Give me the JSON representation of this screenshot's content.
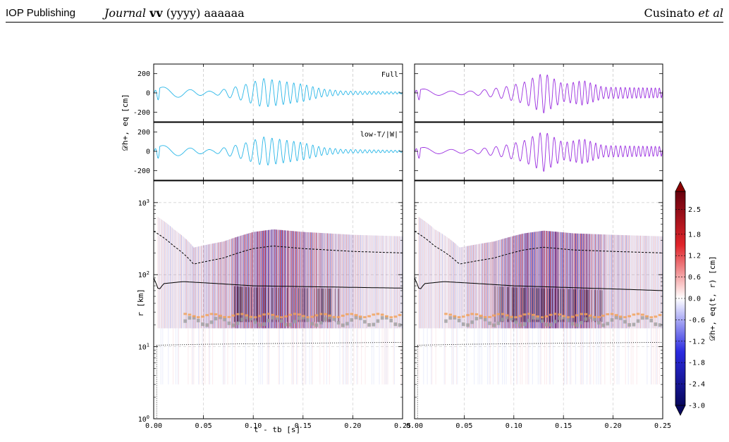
{
  "header": {
    "publisher": "IOP Publishing",
    "journal_italic": "Journal",
    "journal_vol": "vv",
    "journal_year": "(yyyy)",
    "journal_page": "aaaaaa",
    "author_name": "Cusinato",
    "author_etal": "et al"
  },
  "figure": {
    "panel_labels": [
      "Full",
      "low-T/|W|"
    ],
    "ylabel_top": "𝒟h+, eq [cm]",
    "ylabel_bottom": "r [km]",
    "xlabel": "t - tb [s]",
    "cbar_label": "𝒟h+, eq(t, r) [cm]",
    "colors": {
      "left_wave": "#2ab7e8",
      "right_wave": "#9b30e0",
      "cbar_pos": "#8b0000",
      "cbar_neg": "#08085e"
    }
  },
  "chart_data": [
    {
      "type": "line",
      "panel": "top-left",
      "label": "Full",
      "xlim": [
        0.0,
        0.25
      ],
      "ylim": [
        -300,
        300
      ],
      "yticks": [
        200,
        0,
        -200
      ],
      "series": [
        {
          "x": [
            0.0,
            0.03,
            0.06,
            0.09,
            0.11,
            0.13,
            0.15,
            0.17,
            0.19,
            0.22,
            0.25
          ],
          "values": [
            70,
            40,
            15,
            80,
            150,
            120,
            90,
            40,
            20,
            15,
            10
          ]
        }
      ]
    },
    {
      "type": "line",
      "panel": "top-right",
      "xlim": [
        0.0,
        0.25
      ],
      "ylim": [
        -300,
        300
      ],
      "yticks": [
        200,
        0,
        -200
      ],
      "series": [
        {
          "x": [
            0.0,
            0.03,
            0.06,
            0.09,
            0.11,
            0.13,
            0.15,
            0.17,
            0.19,
            0.22,
            0.25
          ],
          "values": [
            50,
            20,
            20,
            60,
            110,
            210,
            90,
            130,
            60,
            55,
            50
          ]
        }
      ]
    },
    {
      "type": "line",
      "panel": "middle-left",
      "label": "low-T/|W|",
      "xlim": [
        0.0,
        0.25
      ],
      "ylim": [
        -300,
        300
      ],
      "yticks": [
        200,
        0,
        -200
      ],
      "series": [
        {
          "x": [
            0.0,
            0.03,
            0.06,
            0.09,
            0.11,
            0.13,
            0.15,
            0.17,
            0.19,
            0.22,
            0.25
          ],
          "values": [
            70,
            40,
            15,
            80,
            150,
            120,
            90,
            40,
            20,
            15,
            10
          ]
        }
      ]
    },
    {
      "type": "line",
      "panel": "middle-right",
      "xlim": [
        0.0,
        0.25
      ],
      "ylim": [
        -300,
        300
      ],
      "yticks": [
        200,
        0,
        -200
      ],
      "series": [
        {
          "x": [
            0.0,
            0.03,
            0.06,
            0.09,
            0.11,
            0.13,
            0.15,
            0.17,
            0.19,
            0.22,
            0.25
          ],
          "values": [
            50,
            20,
            20,
            60,
            110,
            210,
            90,
            130,
            60,
            55,
            50
          ]
        }
      ]
    },
    {
      "type": "heatmap",
      "panel": "bottom-left",
      "xlim": [
        0.0,
        0.25
      ],
      "ylim": [
        1,
        2000
      ],
      "yscale": "log",
      "xticks": [
        "0.00",
        "0.05",
        "0.10",
        "0.15",
        "0.20",
        "0.25"
      ],
      "yticks": [
        "10^0",
        "10^1",
        "10^2",
        "10^3"
      ],
      "lines": {
        "dashed": {
          "x": [
            0.0,
            0.02,
            0.04,
            0.07,
            0.1,
            0.12,
            0.15,
            0.2,
            0.25
          ],
          "values": [
            400,
            250,
            140,
            170,
            230,
            250,
            230,
            210,
            200
          ]
        },
        "solid": {
          "x": [
            0.0,
            0.005,
            0.01,
            0.03,
            0.1,
            0.25
          ],
          "values": [
            90,
            60,
            75,
            80,
            70,
            65
          ]
        },
        "dotted": {
          "x": [
            0.003,
            0.05,
            0.15,
            0.25
          ],
          "values": [
            10.5,
            10.8,
            11.2,
            11.5
          ]
        }
      }
    },
    {
      "type": "heatmap",
      "panel": "bottom-right",
      "xlim": [
        0.0,
        0.25
      ],
      "ylim": [
        1,
        2000
      ],
      "yscale": "log",
      "xticks": [
        "0.00",
        "0.05",
        "0.10",
        "0.15",
        "0.20",
        "0.25"
      ],
      "lines": {
        "dashed": {
          "x": [
            0.0,
            0.02,
            0.045,
            0.08,
            0.11,
            0.13,
            0.16,
            0.2,
            0.25
          ],
          "values": [
            400,
            250,
            140,
            170,
            220,
            240,
            220,
            210,
            200
          ]
        },
        "solid": {
          "x": [
            0.0,
            0.005,
            0.01,
            0.03,
            0.1,
            0.25
          ],
          "values": [
            90,
            60,
            75,
            80,
            70,
            60
          ]
        },
        "dotted": {
          "x": [
            0.003,
            0.05,
            0.15,
            0.25
          ],
          "values": [
            10.5,
            10.8,
            11.2,
            11.5
          ]
        }
      }
    },
    {
      "type": "heatmap",
      "panel": "colorbar",
      "ticks": [
        "2.5",
        "1.8",
        "1.2",
        "0.6",
        "0.0",
        "-0.6",
        "-1.2",
        "-1.8",
        "-2.4",
        "-3.0"
      ],
      "range": [
        -3.0,
        3.0
      ]
    }
  ]
}
